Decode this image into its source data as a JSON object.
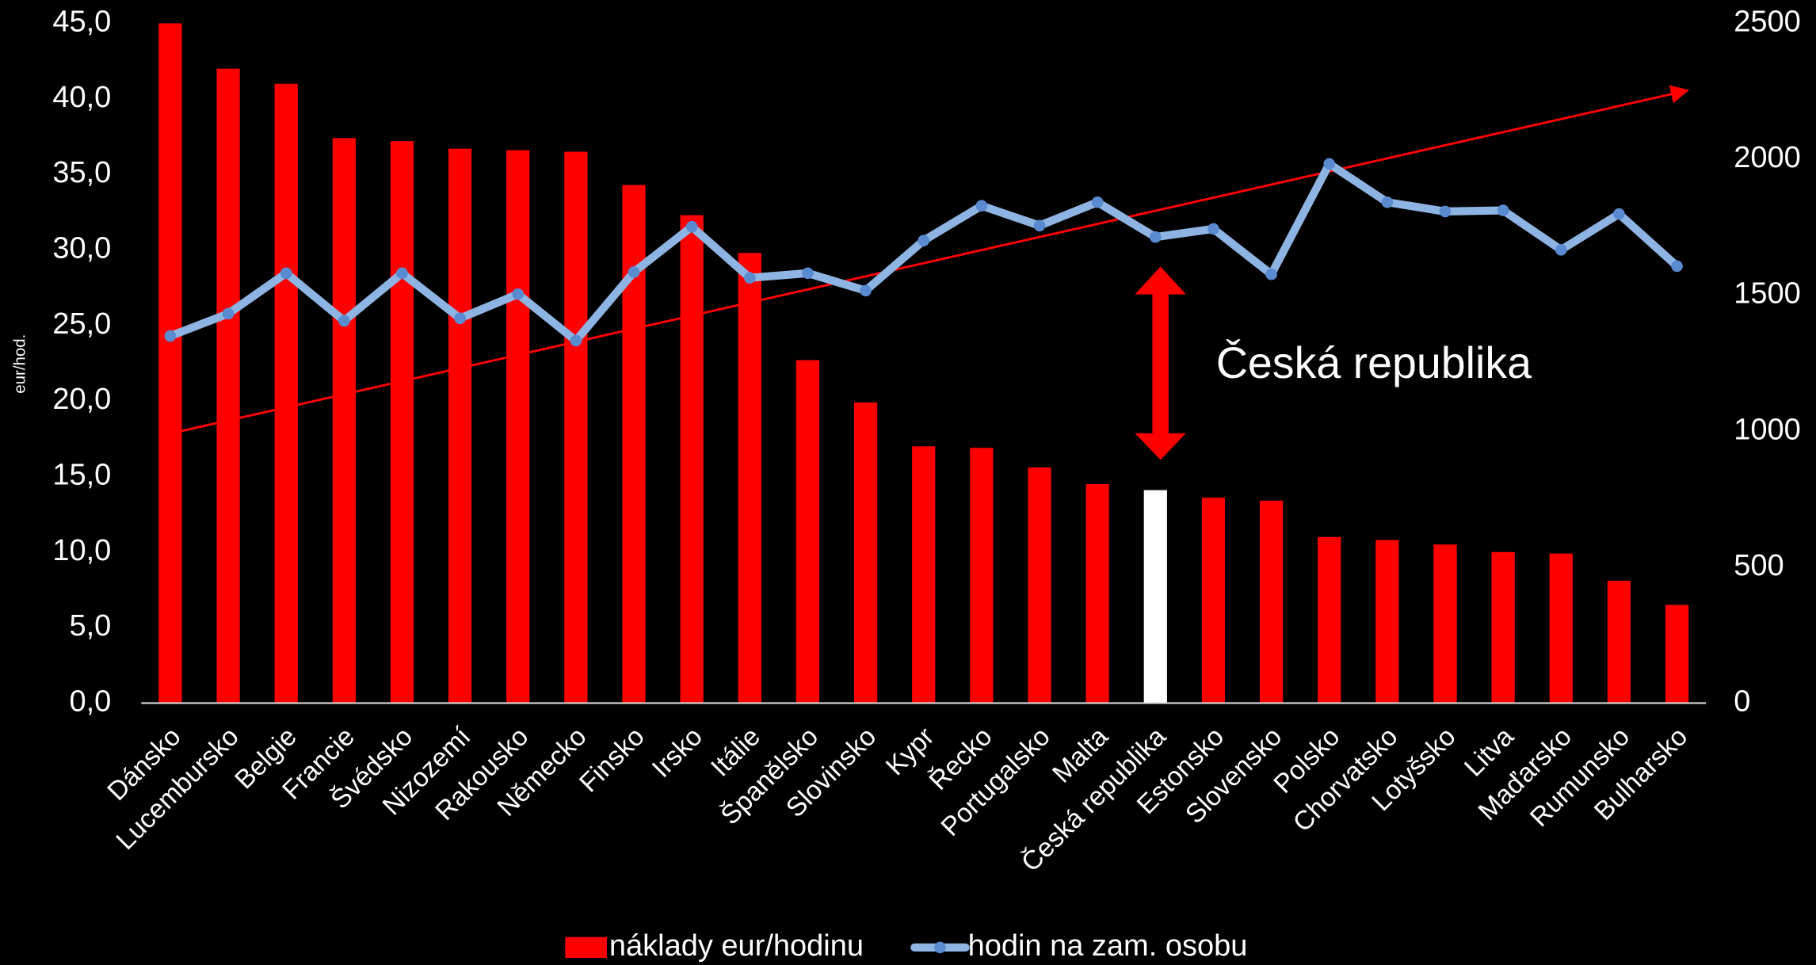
{
  "chart_data": {
    "type": "bar_line",
    "y_label": "eur/hod.",
    "annotation": "Česká republika",
    "categories": [
      "Dánsko",
      "Lucembursko",
      "Belgie",
      "Francie",
      "Švédsko",
      "Nizozemí",
      "Rakousko",
      "Německo",
      "Finsko",
      "Irsko",
      "Itálie",
      "Španělsko",
      "Slovinsko",
      "Kypr",
      "Řecko",
      "Portugalsko",
      "Malta",
      "Česká republika",
      "Estonsko",
      "Slovensko",
      "Polsko",
      "Chorvatsko",
      "Lotyšsko",
      "Litva",
      "Maďarsko",
      "Rumunsko",
      "Bulharsko"
    ],
    "series": [
      {
        "name": "náklady eur/hodinu",
        "type": "bar",
        "color": "#ff0000",
        "colors": [
          "#ff0000",
          "#ff0000",
          "#ff0000",
          "#ff0000",
          "#ff0000",
          "#ff0000",
          "#ff0000",
          "#ff0000",
          "#ff0000",
          "#ff0000",
          "#ff0000",
          "#ff0000",
          "#ff0000",
          "#ff0000",
          "#ff0000",
          "#ff0000",
          "#ff0000",
          "#ffffff",
          "#ff0000",
          "#ff0000",
          "#ff0000",
          "#ff0000",
          "#ff0000",
          "#ff0000",
          "#ff0000",
          "#ff0000",
          "#ff0000"
        ],
        "values": [
          45.0,
          42.0,
          41.0,
          37.4,
          37.2,
          36.7,
          36.6,
          36.5,
          34.3,
          32.3,
          29.8,
          22.7,
          19.9,
          17.0,
          16.9,
          15.6,
          14.5,
          14.1,
          13.6,
          13.4,
          11.0,
          10.8,
          10.5,
          10.0,
          9.9,
          8.1,
          6.5
        ]
      },
      {
        "name": "hodin na zam. osobu",
        "type": "line",
        "axis": "y2",
        "color": "#8eb4e3",
        "values": [
          1350,
          1432,
          1581,
          1406,
          1581,
          1415,
          1504,
          1333,
          1585,
          1752,
          1564,
          1581,
          1517,
          1701,
          1829,
          1756,
          1842,
          1714,
          1744,
          1577,
          1983,
          1842,
          1808,
          1812,
          1667,
          1799,
          1607
        ]
      }
    ],
    "ylim": [
      0,
      45
    ],
    "yticks": [
      {
        "value": 0,
        "label": "0,0"
      },
      {
        "value": 5,
        "label": "5,0"
      },
      {
        "value": 10,
        "label": "10,0"
      },
      {
        "value": 15,
        "label": "15,0"
      },
      {
        "value": 20,
        "label": "20,0"
      },
      {
        "value": 25,
        "label": "25,0"
      },
      {
        "value": 30,
        "label": "30,0"
      },
      {
        "value": 35,
        "label": "35,0"
      },
      {
        "value": 40,
        "label": "40,0"
      },
      {
        "value": 45,
        "label": "45,0"
      }
    ],
    "y2lim": [
      0,
      2500
    ],
    "y2ticks": [
      0,
      500,
      1000,
      1500,
      2000,
      2500
    ],
    "legend": "bottom"
  }
}
